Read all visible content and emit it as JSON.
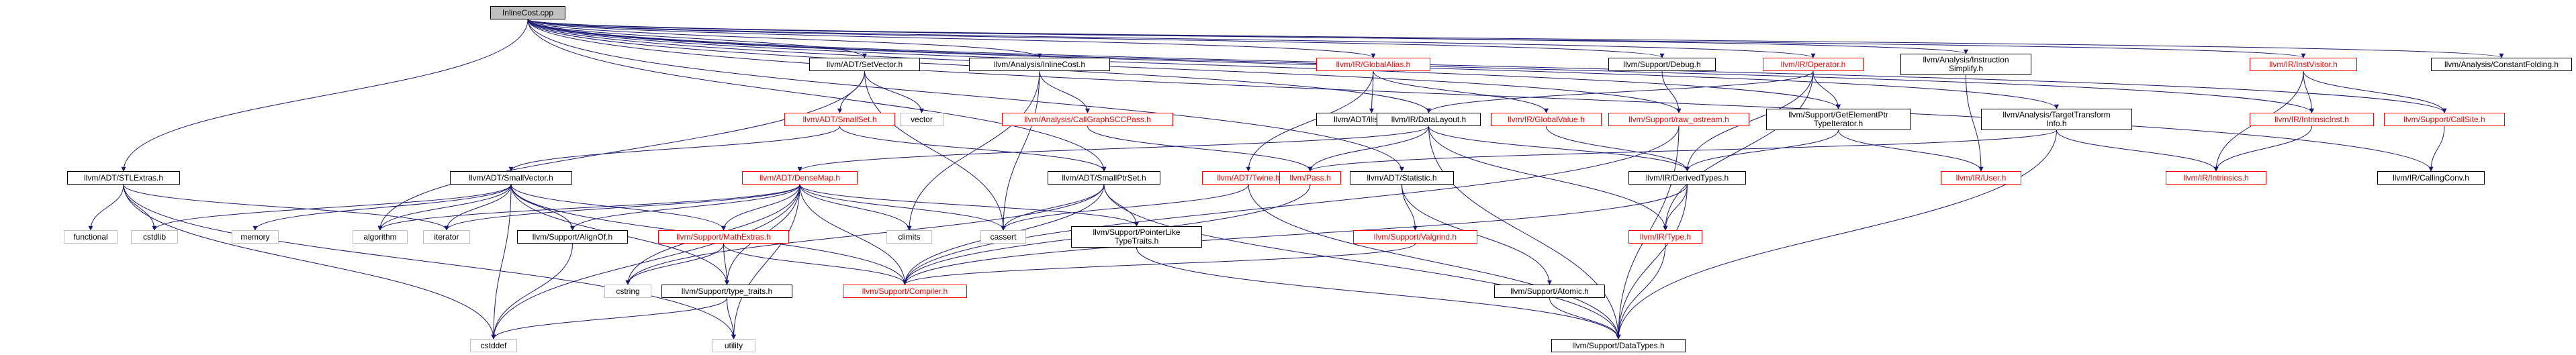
{
  "graph": {
    "edge_color": "#191970",
    "nodes": [
      {
        "id": "root",
        "lines": [
          "InlineCost.cpp"
        ],
        "style": "root"
      },
      {
        "id": "smallvector_h1",
        "lines": [
          "llvm/ADT/SetVector.h"
        ],
        "style": "box"
      },
      {
        "id": "inlinecost_h",
        "lines": [
          "llvm/Analysis/InlineCost.h"
        ],
        "style": "box"
      },
      {
        "id": "globalalias",
        "lines": [
          "llvm/IR/GlobalAlias.h"
        ],
        "style": "red"
      },
      {
        "id": "debug",
        "lines": [
          "llvm/Support/Debug.h"
        ],
        "style": "box"
      },
      {
        "id": "operator",
        "lines": [
          "llvm/IR/Operator.h"
        ],
        "style": "red"
      },
      {
        "id": "instsimplify",
        "lines": [
          "llvm/Analysis/Instruction",
          "Simplify.h"
        ],
        "style": "box"
      },
      {
        "id": "instvisitor",
        "lines": [
          "llvm/IR/InstVisitor.h"
        ],
        "style": "red"
      },
      {
        "id": "constfold",
        "lines": [
          "llvm/Analysis/ConstantFolding.h"
        ],
        "style": "box"
      },
      {
        "id": "vector",
        "lines": [
          "vector"
        ],
        "style": "plain"
      },
      {
        "id": "smallset",
        "lines": [
          "llvm/ADT/SmallSet.h"
        ],
        "style": "red"
      },
      {
        "id": "cgscc",
        "lines": [
          "llvm/Analysis/CallGraphSCCPass.h"
        ],
        "style": "red"
      },
      {
        "id": "ilistnode",
        "lines": [
          "llvm/ADT/ilist_node.h"
        ],
        "style": "box"
      },
      {
        "id": "globalvalue",
        "lines": [
          "llvm/IR/GlobalValue.h"
        ],
        "style": "red"
      },
      {
        "id": "rawostream",
        "lines": [
          "llvm/Support/raw_ostream.h"
        ],
        "style": "red"
      },
      {
        "id": "gepiter",
        "lines": [
          "llvm/Support/GetElementPtr",
          "TypeIterator.h"
        ],
        "style": "box"
      },
      {
        "id": "tti",
        "lines": [
          "llvm/Analysis/TargetTransform",
          "Info.h"
        ],
        "style": "box"
      },
      {
        "id": "intrinsicinst",
        "lines": [
          "llvm/IR/IntrinsicInst.h"
        ],
        "style": "red"
      },
      {
        "id": "callsite",
        "lines": [
          "llvm/Support/CallSite.h"
        ],
        "style": "red"
      },
      {
        "id": "datalayout",
        "lines": [
          "llvm/IR/DataLayout.h"
        ],
        "style": "box"
      },
      {
        "id": "stlextras",
        "lines": [
          "llvm/ADT/STLExtras.h"
        ],
        "style": "box"
      },
      {
        "id": "smallvector",
        "lines": [
          "llvm/ADT/SmallVector.h"
        ],
        "style": "box"
      },
      {
        "id": "densemap",
        "lines": [
          "llvm/ADT/DenseMap.h"
        ],
        "style": "red"
      },
      {
        "id": "smallptrset",
        "lines": [
          "llvm/ADT/SmallPtrSet.h"
        ],
        "style": "box"
      },
      {
        "id": "twine",
        "lines": [
          "llvm/ADT/Twine.h"
        ],
        "style": "red"
      },
      {
        "id": "pass",
        "lines": [
          "llvm/Pass.h"
        ],
        "style": "red"
      },
      {
        "id": "statistic",
        "lines": [
          "llvm/ADT/Statistic.h"
        ],
        "style": "box"
      },
      {
        "id": "derivedtypes",
        "lines": [
          "llvm/IR/DerivedTypes.h"
        ],
        "style": "box"
      },
      {
        "id": "user",
        "lines": [
          "llvm/IR/User.h"
        ],
        "style": "red"
      },
      {
        "id": "intrinsics",
        "lines": [
          "llvm/IR/Intrinsics.h"
        ],
        "style": "red"
      },
      {
        "id": "callingconv",
        "lines": [
          "llvm/IR/CallingConv.h"
        ],
        "style": "box"
      },
      {
        "id": "functional",
        "lines": [
          "functional"
        ],
        "style": "plain"
      },
      {
        "id": "cstdlib",
        "lines": [
          "cstdlib"
        ],
        "style": "plain"
      },
      {
        "id": "memory",
        "lines": [
          "memory"
        ],
        "style": "plain"
      },
      {
        "id": "algorithm",
        "lines": [
          "algorithm"
        ],
        "style": "plain"
      },
      {
        "id": "iterator",
        "lines": [
          "iterator"
        ],
        "style": "plain"
      },
      {
        "id": "alignof",
        "lines": [
          "llvm/Support/AlignOf.h"
        ],
        "style": "box"
      },
      {
        "id": "mathextras",
        "lines": [
          "llvm/Support/MathExtras.h"
        ],
        "style": "red"
      },
      {
        "id": "climits",
        "lines": [
          "climits"
        ],
        "style": "plain"
      },
      {
        "id": "cassert",
        "lines": [
          "cassert"
        ],
        "style": "plain"
      },
      {
        "id": "pointerlike",
        "lines": [
          "llvm/Support/PointerLike",
          "TypeTraits.h"
        ],
        "style": "box"
      },
      {
        "id": "valgrind",
        "lines": [
          "llvm/Support/Valgrind.h"
        ],
        "style": "red"
      },
      {
        "id": "type",
        "lines": [
          "llvm/IR/Type.h"
        ],
        "style": "red"
      },
      {
        "id": "cstring",
        "lines": [
          "cstring"
        ],
        "style": "plain"
      },
      {
        "id": "compiler",
        "lines": [
          "llvm/Support/Compiler.h"
        ],
        "style": "red"
      },
      {
        "id": "atomic",
        "lines": [
          "llvm/Support/Atomic.h"
        ],
        "style": "box"
      },
      {
        "id": "typetraits",
        "lines": [
          "llvm/Support/type_traits.h"
        ],
        "style": "box"
      },
      {
        "id": "cstddef",
        "lines": [
          "cstddef"
        ],
        "style": "plain"
      },
      {
        "id": "utility",
        "lines": [
          "utility"
        ],
        "style": "plain"
      },
      {
        "id": "datatypes",
        "lines": [
          "llvm/Support/DataTypes.h"
        ],
        "style": "box"
      }
    ],
    "edges": [
      [
        "root",
        "smallvector_h1"
      ],
      [
        "root",
        "inlinecost_h"
      ],
      [
        "root",
        "globalalias"
      ],
      [
        "root",
        "debug"
      ],
      [
        "root",
        "operator"
      ],
      [
        "root",
        "instsimplify"
      ],
      [
        "root",
        "instvisitor"
      ],
      [
        "root",
        "constfold"
      ],
      [
        "root",
        "stlextras"
      ],
      [
        "root",
        "smallptrset"
      ],
      [
        "root",
        "statistic"
      ],
      [
        "root",
        "datalayout"
      ],
      [
        "root",
        "gepiter"
      ],
      [
        "root",
        "tti"
      ],
      [
        "root",
        "callsite"
      ],
      [
        "root",
        "callingconv"
      ],
      [
        "root",
        "intrinsicinst"
      ],
      [
        "root",
        "rawostream"
      ],
      [
        "smallvector_h1",
        "vector"
      ],
      [
        "smallvector_h1",
        "smallset"
      ],
      [
        "smallvector_h1",
        "cassert"
      ],
      [
        "smallvector_h1",
        "algorithm"
      ],
      [
        "inlinecost_h",
        "cgscc"
      ],
      [
        "inlinecost_h",
        "cassert"
      ],
      [
        "inlinecost_h",
        "climits"
      ],
      [
        "globalalias",
        "ilistnode"
      ],
      [
        "globalalias",
        "globalvalue"
      ],
      [
        "globalalias",
        "twine"
      ],
      [
        "debug",
        "rawostream"
      ],
      [
        "operator",
        "derivedtypes"
      ],
      [
        "operator",
        "type"
      ],
      [
        "operator",
        "datalayout"
      ],
      [
        "operator",
        "gepiter"
      ],
      [
        "instsimplify",
        "user"
      ],
      [
        "instvisitor",
        "intrinsicinst"
      ],
      [
        "instvisitor",
        "callsite"
      ],
      [
        "instvisitor",
        "intrinsics"
      ],
      [
        "smallset",
        "smallvector"
      ],
      [
        "smallset",
        "smallptrset"
      ],
      [
        "cgscc",
        "pass"
      ],
      [
        "globalvalue",
        "derivedtypes"
      ],
      [
        "rawostream",
        "compiler"
      ],
      [
        "rawostream",
        "datatypes"
      ],
      [
        "gepiter",
        "user"
      ],
      [
        "gepiter",
        "derivedtypes"
      ],
      [
        "tti",
        "intrinsics"
      ],
      [
        "tti",
        "pass"
      ],
      [
        "tti",
        "datatypes"
      ],
      [
        "intrinsicinst",
        "intrinsics"
      ],
      [
        "callsite",
        "callingconv"
      ],
      [
        "datalayout",
        "densemap"
      ],
      [
        "datalayout",
        "pass"
      ],
      [
        "datalayout",
        "derivedtypes"
      ],
      [
        "datalayout",
        "type"
      ],
      [
        "datalayout",
        "datatypes"
      ],
      [
        "stlextras",
        "functional"
      ],
      [
        "stlextras",
        "cstdlib"
      ],
      [
        "stlextras",
        "iterator"
      ],
      [
        "stlextras",
        "cstddef"
      ],
      [
        "stlextras",
        "utility"
      ],
      [
        "smallvector",
        "cstdlib"
      ],
      [
        "smallvector",
        "memory"
      ],
      [
        "smallvector",
        "algorithm"
      ],
      [
        "smallvector",
        "iterator"
      ],
      [
        "smallvector",
        "alignof"
      ],
      [
        "smallvector",
        "mathextras"
      ],
      [
        "smallvector",
        "typetraits"
      ],
      [
        "smallvector",
        "compiler"
      ],
      [
        "smallvector",
        "cstddef"
      ],
      [
        "densemap",
        "algorithm"
      ],
      [
        "densemap",
        "iterator"
      ],
      [
        "densemap",
        "alignof"
      ],
      [
        "densemap",
        "mathextras"
      ],
      [
        "densemap",
        "climits"
      ],
      [
        "densemap",
        "cassert"
      ],
      [
        "densemap",
        "pointerlike"
      ],
      [
        "densemap",
        "typetraits"
      ],
      [
        "densemap",
        "compiler"
      ],
      [
        "densemap",
        "cstring"
      ],
      [
        "densemap",
        "cstddef"
      ],
      [
        "densemap",
        "utility"
      ],
      [
        "smallptrset",
        "cassert"
      ],
      [
        "smallptrset",
        "pointerlike"
      ],
      [
        "smallptrset",
        "compiler"
      ],
      [
        "smallptrset",
        "cstring"
      ],
      [
        "smallptrset",
        "datatypes"
      ],
      [
        "twine",
        "cassert"
      ],
      [
        "twine",
        "datatypes"
      ],
      [
        "pass",
        "compiler"
      ],
      [
        "statistic",
        "valgrind"
      ],
      [
        "statistic",
        "atomic"
      ],
      [
        "derivedtypes",
        "type"
      ],
      [
        "derivedtypes",
        "compiler"
      ],
      [
        "derivedtypes",
        "datatypes"
      ],
      [
        "alignof",
        "cstddef"
      ],
      [
        "mathextras",
        "cstring"
      ],
      [
        "mathextras",
        "typetraits"
      ],
      [
        "mathextras",
        "compiler"
      ],
      [
        "pointerlike",
        "datatypes"
      ],
      [
        "valgrind",
        "compiler"
      ],
      [
        "type",
        "datatypes"
      ],
      [
        "atomic",
        "datatypes"
      ],
      [
        "typetraits",
        "cstddef"
      ],
      [
        "typetraits",
        "utility"
      ]
    ]
  }
}
